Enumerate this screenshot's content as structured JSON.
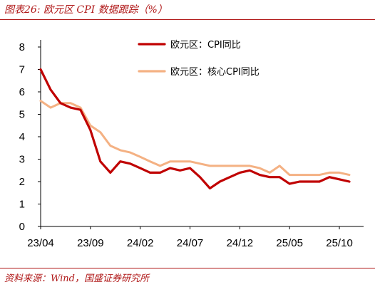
{
  "figure": {
    "title": "图表26:  欧元区 CPI 数据跟踪（%）",
    "source": "资料来源：Wind，国盛证券研究所"
  },
  "chart_data": {
    "type": "line",
    "title": "",
    "xlabel": "",
    "ylabel": "",
    "ylim": [
      0,
      8
    ],
    "yticks": [
      0,
      1,
      2,
      3,
      4,
      5,
      6,
      7,
      8
    ],
    "x": [
      "23/04",
      "23/05",
      "23/06",
      "23/07",
      "23/08",
      "23/09",
      "23/10",
      "23/11",
      "23/12",
      "24/01",
      "24/02",
      "24/03",
      "24/04",
      "24/05",
      "24/06",
      "24/07",
      "24/08",
      "24/09",
      "24/10",
      "24/11",
      "24/12",
      "25/01",
      "25/02",
      "25/03",
      "25/04",
      "25/05",
      "25/06",
      "25/07",
      "25/08",
      "25/09",
      "25/10",
      "25/11"
    ],
    "xticks": [
      "23/04",
      "23/09",
      "24/02",
      "24/07",
      "24/12",
      "25/05",
      "25/10"
    ],
    "grid": false,
    "legend_position": "top-right",
    "series": [
      {
        "name": "欧元区：CPI同比",
        "color": "#c00000",
        "values": [
          7.0,
          6.1,
          5.5,
          5.3,
          5.2,
          4.3,
          2.9,
          2.4,
          2.9,
          2.8,
          2.6,
          2.4,
          2.4,
          2.6,
          2.5,
          2.6,
          2.2,
          1.7,
          2.0,
          2.2,
          2.4,
          2.5,
          2.3,
          2.2,
          2.2,
          1.9,
          2.0,
          2.0,
          2.0,
          2.2,
          2.1,
          2.0
        ]
      },
      {
        "name": "欧元区：核心CPI同比",
        "color": "#f4b183",
        "values": [
          5.6,
          5.3,
          5.5,
          5.5,
          5.3,
          4.5,
          4.2,
          3.6,
          3.4,
          3.3,
          3.1,
          2.9,
          2.7,
          2.9,
          2.9,
          2.9,
          2.8,
          2.7,
          2.7,
          2.7,
          2.7,
          2.7,
          2.6,
          2.4,
          2.7,
          2.3,
          2.3,
          2.3,
          2.3,
          2.4,
          2.4,
          2.3
        ]
      }
    ]
  }
}
